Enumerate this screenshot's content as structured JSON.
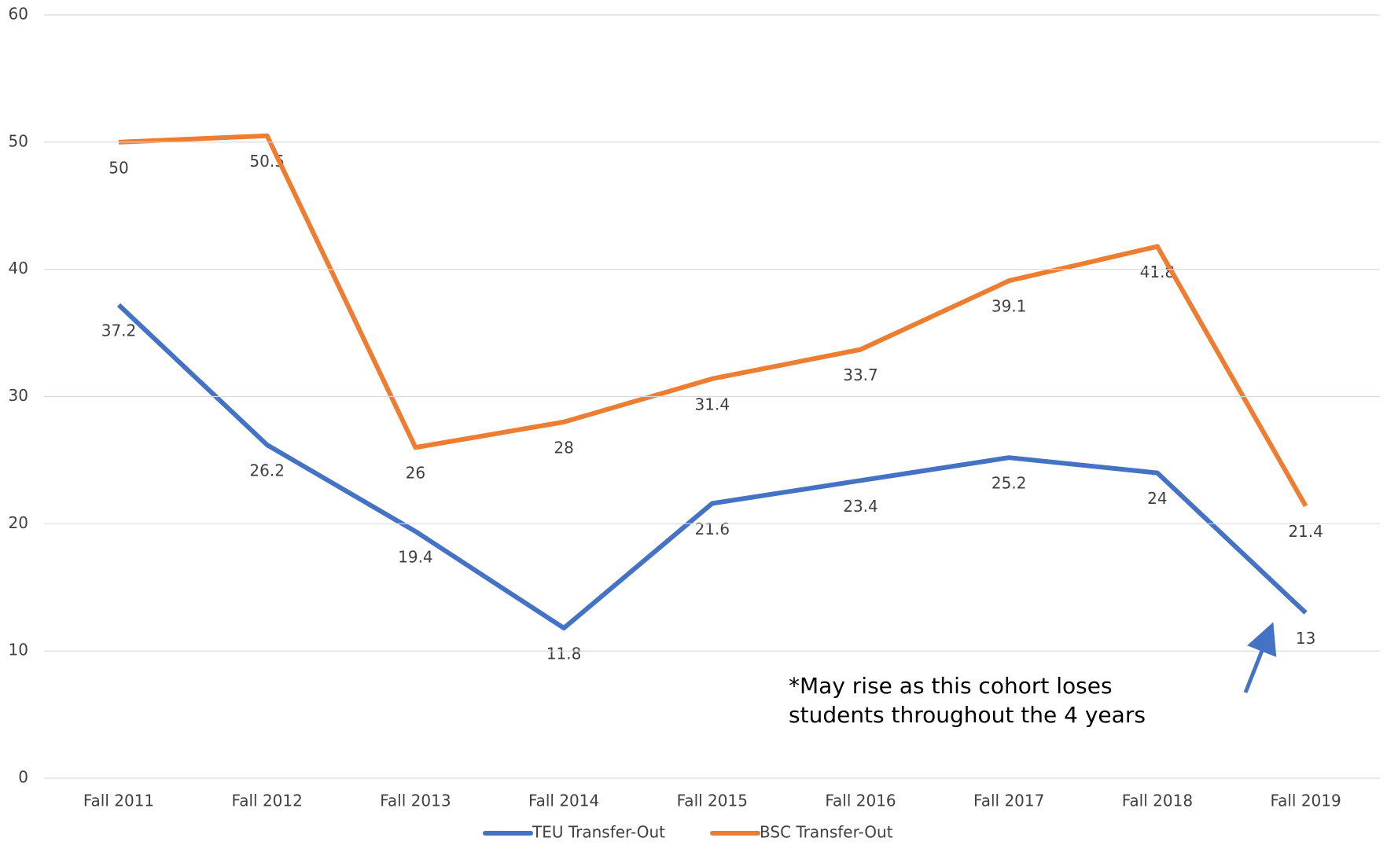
{
  "chart_data": {
    "type": "line",
    "categories": [
      "Fall 2011",
      "Fall 2012",
      "Fall 2013",
      "Fall 2014",
      "Fall 2015",
      "Fall 2016",
      "Fall 2017",
      "Fall 2018",
      "Fall 2019"
    ],
    "series": [
      {
        "name": "TEU Transfer-Out",
        "color": "#4472c4",
        "values": [
          37.2,
          26.2,
          19.4,
          11.8,
          21.6,
          23.4,
          25.2,
          24,
          13
        ]
      },
      {
        "name": "BSC Transfer-Out",
        "color": "#ed7d31",
        "values": [
          50,
          50.5,
          26,
          28,
          31.4,
          33.7,
          39.1,
          41.8,
          21.4
        ]
      }
    ],
    "ylim": [
      0,
      60
    ],
    "yticks": [
      0,
      10,
      20,
      30,
      40,
      50,
      60
    ],
    "grid": true,
    "legend": "bottom",
    "annotation": [
      "*May rise as this cohort loses",
      "students throughout the 4 years"
    ]
  }
}
